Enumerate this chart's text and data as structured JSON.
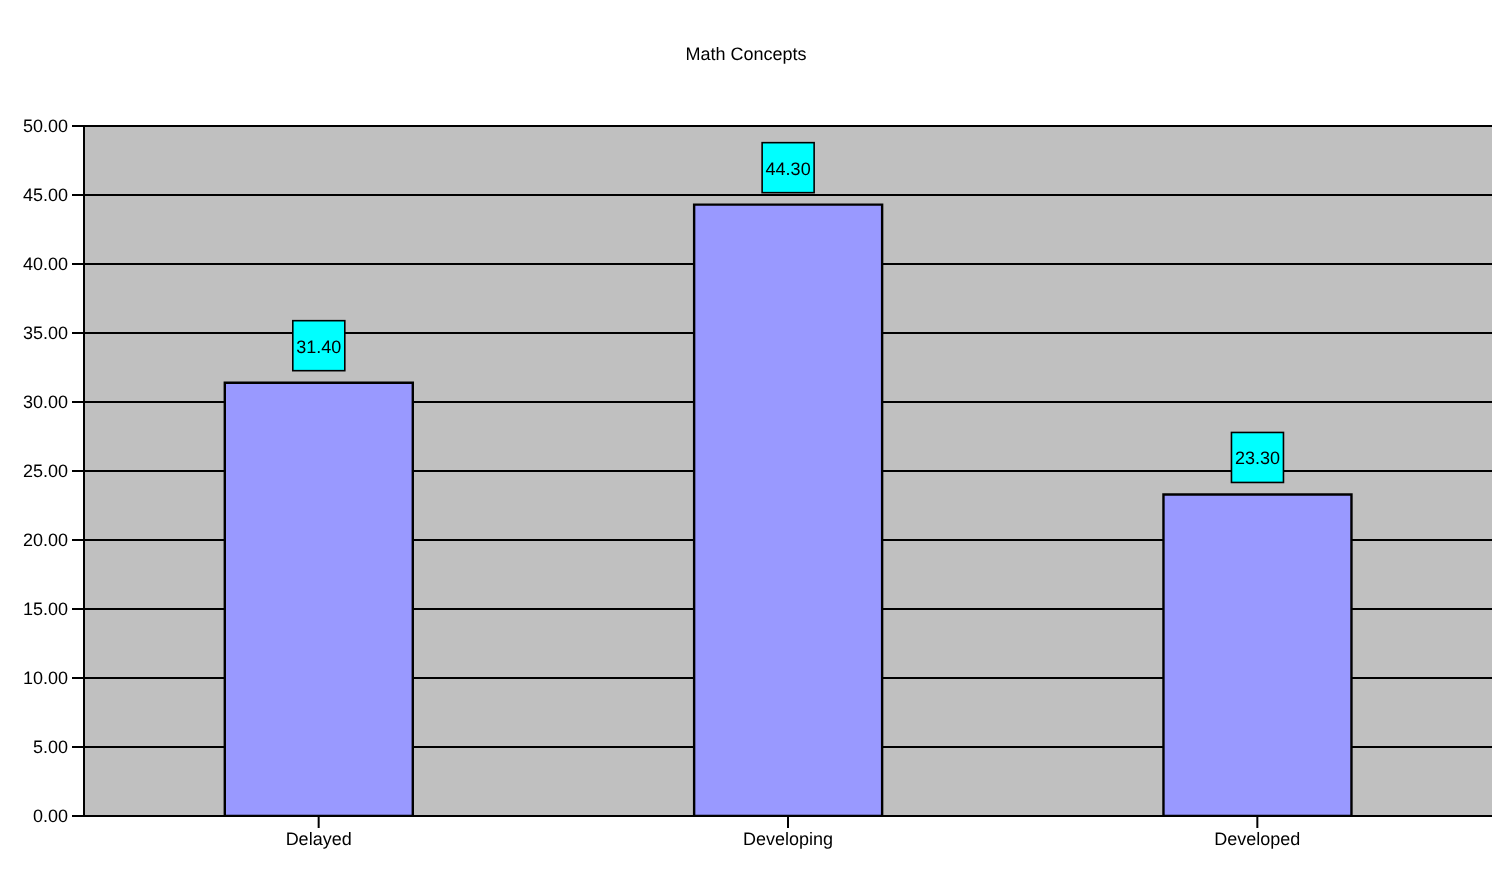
{
  "chart_data": {
    "type": "bar",
    "title": "Math Concepts",
    "categories": [
      "Delayed",
      "Developing",
      "Developed"
    ],
    "values": [
      31.4,
      44.3,
      23.3
    ],
    "value_labels": [
      "31.40",
      "44.30",
      "23.30"
    ],
    "color": "#9999ff",
    "ylim": [
      0,
      50
    ],
    "yticks": [
      {
        "value": 0,
        "label": "0.00"
      },
      {
        "value": 5,
        "label": "5.00"
      },
      {
        "value": 10,
        "label": "10.00"
      },
      {
        "value": 15,
        "label": "15.00"
      },
      {
        "value": 20,
        "label": "20.00"
      },
      {
        "value": 25,
        "label": "25.00"
      },
      {
        "value": 30,
        "label": "30.00"
      },
      {
        "value": 35,
        "label": "35.00"
      },
      {
        "value": 40,
        "label": "40.00"
      },
      {
        "value": 45,
        "label": "45.00"
      },
      {
        "value": 50,
        "label": "50.00"
      }
    ],
    "grid": "y",
    "legend": false
  }
}
